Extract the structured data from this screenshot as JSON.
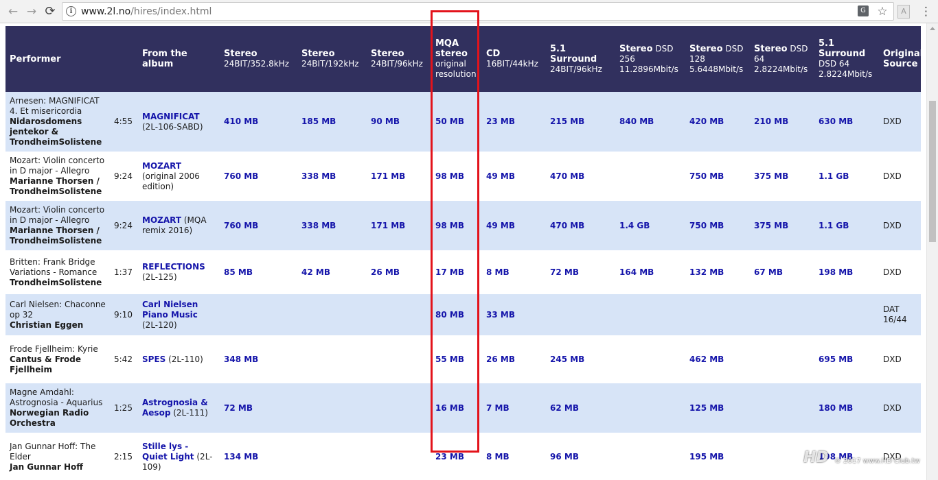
{
  "browser": {
    "url_host": "www.2l.no",
    "url_path": "/hires/index.html",
    "back_glyph": "←",
    "forward_glyph": "→",
    "reload_glyph": "⟳",
    "info_glyph": "i",
    "translate_glyph": "G",
    "star_glyph": "☆",
    "menu_glyph": "⋮",
    "ext_glyph": "A",
    "icons": [
      "back-icon",
      "forward-icon",
      "reload-icon",
      "info-icon",
      "translate-icon",
      "bookmark-star-icon",
      "extension-icon",
      "menu-icon"
    ]
  },
  "table": {
    "headers": {
      "performer": "Performer",
      "album": "From the album",
      "s352": {
        "title": "Stereo",
        "sub": "24BIT/352.8kHz"
      },
      "s192": {
        "title": "Stereo",
        "sub": "24BIT/192kHz"
      },
      "s96": {
        "title": "Stereo",
        "sub": "24BIT/96kHz"
      },
      "mqa": {
        "title": "MQA stereo",
        "sub": "original resolution"
      },
      "cd": {
        "title": "CD",
        "sub": "16BIT/44kHz"
      },
      "sur96": {
        "title": "5.1 Surround",
        "sub": "24BIT/96kHz"
      },
      "dsd256": {
        "title": "Stereo",
        "sub": "DSD 256 11.2896Mbit/s"
      },
      "dsd128": {
        "title": "Stereo",
        "sub": "DSD 128 5.6448Mbit/s"
      },
      "dsd64": {
        "title": "Stereo",
        "sub": "DSD 64 2.8224Mbit/s"
      },
      "surdsd": {
        "title": "5.1 Surround",
        "sub": "DSD 64 2.8224Mbit/s"
      },
      "source": {
        "title": "Original Source",
        "sub": ""
      }
    },
    "rows": [
      {
        "work": "Arnesen: MAGNIFICAT 4. Et misericordia",
        "artist": "Nidarosdomens jentekor & TrondheimSolistene",
        "time": "4:55",
        "album_link": "MAGNIFICAT",
        "album_cat": "(2L-106-SABD)",
        "s352": "410 MB",
        "s192": "185 MB",
        "s96": "90 MB",
        "mqa": "50 MB",
        "cd": "23 MB",
        "sur96": "215 MB",
        "dsd256": "840 MB",
        "dsd128": "420 MB",
        "dsd64": "210 MB",
        "surdsd": "630 MB",
        "source": "DXD"
      },
      {
        "work": "Mozart: Violin concerto in D major - Allegro",
        "artist": "Marianne Thorsen / TrondheimSolistene",
        "time": "9:24",
        "album_link": "MOZART",
        "album_cat": "(original 2006 edition)",
        "s352": "760 MB",
        "s192": "338 MB",
        "s96": "171 MB",
        "mqa": "98 MB",
        "cd": "49 MB",
        "sur96": "470 MB",
        "dsd256": "",
        "dsd128": "750 MB",
        "dsd64": "375 MB",
        "surdsd": "1.1 GB",
        "source": "DXD"
      },
      {
        "work": "Mozart: Violin concerto in D major - Allegro",
        "artist": "Marianne Thorsen / TrondheimSolistene",
        "time": "9:24",
        "album_link": "MOZART",
        "album_cat": "(MQA remix 2016)",
        "s352": "760 MB",
        "s192": "338 MB",
        "s96": "171 MB",
        "mqa": "98 MB",
        "cd": "49 MB",
        "sur96": "470 MB",
        "dsd256": "1.4 GB",
        "dsd128": "750 MB",
        "dsd64": "375 MB",
        "surdsd": "1.1 GB",
        "source": "DXD"
      },
      {
        "work": "Britten: Frank Bridge Variations - Romance",
        "artist": "TrondheimSolistene",
        "time": "1:37",
        "album_link": "REFLECTIONS",
        "album_cat": "(2L-125)",
        "s352": "85 MB",
        "s192": "42 MB",
        "s96": "26 MB",
        "mqa": "17 MB",
        "cd": "8 MB",
        "sur96": "72 MB",
        "dsd256": "164 MB",
        "dsd128": "132 MB",
        "dsd64": "67 MB",
        "surdsd": "198 MB",
        "source": "DXD"
      },
      {
        "work": "Carl Nielsen: Chaconne op 32",
        "artist": "Christian Eggen",
        "time": "9:10",
        "album_link": "Carl Nielsen Piano Music",
        "album_cat": "(2L-120)",
        "s352": "",
        "s192": "",
        "s96": "",
        "mqa": "80 MB",
        "cd": "33 MB",
        "sur96": "",
        "dsd256": "",
        "dsd128": "",
        "dsd64": "",
        "surdsd": "",
        "source": "DAT 16/44"
      },
      {
        "work": "Frode Fjellheim: Kyrie",
        "artist": "Cantus & Frode Fjellheim",
        "time": "5:42",
        "album_link": "SPES",
        "album_cat": "(2L-110)",
        "s352": "348 MB",
        "s192": "",
        "s96": "",
        "mqa": "55 MB",
        "cd": "26 MB",
        "sur96": "245 MB",
        "dsd256": "",
        "dsd128": "462 MB",
        "dsd64": "",
        "surdsd": "695 MB",
        "source": "DXD"
      },
      {
        "work": "Magne Amdahl: Astrognosia - Aquarius",
        "artist": "Norwegian Radio Orchestra",
        "time": "1:25",
        "album_link": "Astrognosia & Aesop",
        "album_cat": "(2L-111)",
        "s352": "72 MB",
        "s192": "",
        "s96": "",
        "mqa": "16 MB",
        "cd": "7 MB",
        "sur96": "62 MB",
        "dsd256": "",
        "dsd128": "125 MB",
        "dsd64": "",
        "surdsd": "180 MB",
        "source": "DXD"
      },
      {
        "work": "Jan Gunnar Hoff: The Elder",
        "artist": "Jan Gunnar Hoff",
        "time": "2:15",
        "album_link": "Stille lys - Quiet Light",
        "album_cat": "(2L-109)",
        "s352": "134 MB",
        "s192": "",
        "s96": "",
        "mqa": "23 MB",
        "cd": "8 MB",
        "sur96": "96 MB",
        "dsd256": "",
        "dsd128": "195 MB",
        "dsd64": "",
        "surdsd": "198 MB",
        "source": "DXD"
      }
    ]
  },
  "watermark": {
    "logo": "HD",
    "text": "© 2017 www.HD Club.tw"
  },
  "colors": {
    "header_bg": "#31305e",
    "row_blue": "#d7e4f7",
    "link": "#1515aa",
    "highlight": "#e3131b"
  }
}
